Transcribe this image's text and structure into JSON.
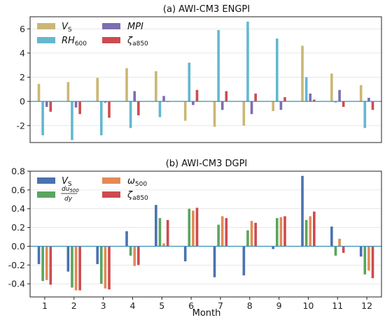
{
  "chart_data": [
    {
      "type": "bar",
      "title": "(a) AWI-CM3 ENGPI",
      "xlabel": "",
      "ylabel": "",
      "categories": [
        "1",
        "2",
        "3",
        "4",
        "5",
        "6",
        "7",
        "8",
        "9",
        "10",
        "11",
        "12"
      ],
      "ylim": [
        -3.4,
        7.0
      ],
      "yticks": [
        -2,
        0,
        2,
        4,
        6
      ],
      "grid": true,
      "legend_placement": "top-left",
      "series": [
        {
          "name": "V_S",
          "color": "#cbb774",
          "values": [
            1.45,
            1.6,
            1.95,
            2.75,
            2.5,
            -1.6,
            -2.1,
            -2.0,
            -0.8,
            4.6,
            2.3,
            1.35
          ]
        },
        {
          "name": "RH_600",
          "color": "#63b8cf",
          "values": [
            -2.8,
            -3.2,
            -2.8,
            -2.2,
            -1.3,
            3.2,
            5.9,
            6.6,
            5.2,
            2.0,
            -0.1,
            -2.2
          ]
        },
        {
          "name": "MPI",
          "color": "#7d6db3",
          "values": [
            -0.45,
            -0.5,
            -0.1,
            0.85,
            0.45,
            -0.3,
            -0.7,
            -1.05,
            -0.7,
            0.65,
            0.95,
            0.3
          ]
        },
        {
          "name": "ζ_a850",
          "color": "#cd4b4f",
          "values": [
            -0.85,
            -1.05,
            -1.35,
            -1.15,
            -0.05,
            0.95,
            0.85,
            0.65,
            0.35,
            0.15,
            -0.45,
            -0.7
          ]
        }
      ]
    },
    {
      "type": "bar",
      "title": "(b) AWI-CM3 DGPI",
      "xlabel": "Month",
      "ylabel": "",
      "categories": [
        "1",
        "2",
        "3",
        "4",
        "5",
        "6",
        "7",
        "8",
        "9",
        "10",
        "11",
        "12"
      ],
      "ylim": [
        -0.54,
        0.8
      ],
      "yticks": [
        -0.4,
        -0.2,
        0.0,
        0.2,
        0.4,
        0.6,
        0.8
      ],
      "grid": true,
      "legend_placement": "top-left",
      "series": [
        {
          "name": "V_S",
          "color": "#4a72b0",
          "values": [
            -0.19,
            -0.27,
            -0.19,
            0.16,
            0.44,
            -0.16,
            -0.33,
            -0.31,
            -0.03,
            0.75,
            0.21,
            -0.11
          ]
        },
        {
          "name": "du_500/dy",
          "color": "#5aa55f",
          "values": [
            -0.37,
            -0.44,
            -0.4,
            -0.1,
            0.3,
            0.4,
            0.23,
            0.17,
            0.3,
            0.28,
            -0.1,
            -0.3
          ]
        },
        {
          "name": "ω_500",
          "color": "#e38a55",
          "values": [
            -0.36,
            -0.47,
            -0.45,
            -0.21,
            0.03,
            0.38,
            0.32,
            0.27,
            0.31,
            0.32,
            0.08,
            -0.26
          ]
        },
        {
          "name": "ζ_a850",
          "color": "#cd4b4f",
          "values": [
            -0.41,
            -0.47,
            -0.46,
            -0.2,
            0.28,
            0.41,
            0.3,
            0.25,
            0.32,
            0.37,
            -0.07,
            -0.34
          ]
        }
      ]
    }
  ]
}
